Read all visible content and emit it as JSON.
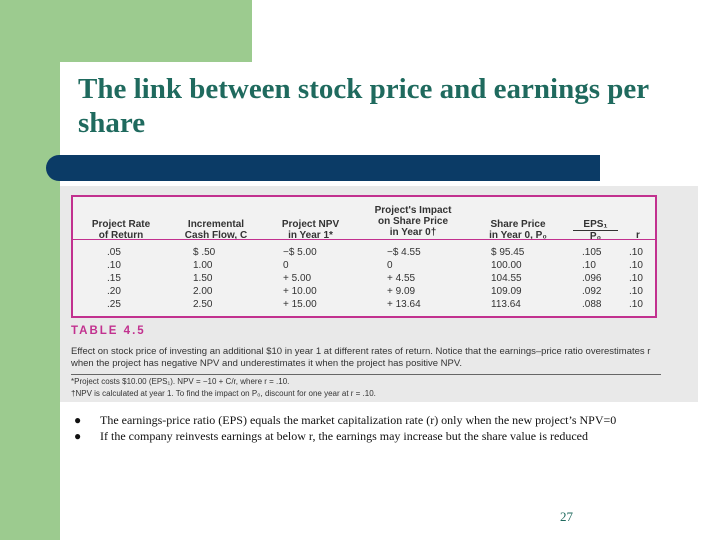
{
  "slide": {
    "title": "The link between stock price and earnings per share",
    "page_number": "27"
  },
  "table": {
    "headers": [
      [
        "Project Rate",
        "of Return"
      ],
      [
        "Incremental",
        "Cash Flow, C"
      ],
      [
        "Project NPV",
        "in Year 1*"
      ],
      [
        "Project's Impact",
        "on Share Price",
        "in Year 0†"
      ],
      [
        "Share Price",
        "in Year 0, P₀"
      ],
      [
        "EPS₁",
        "P₀"
      ],
      [
        "r"
      ]
    ],
    "rows": [
      [
        ".05",
        "$ .50",
        "−$ 5.00",
        "−$ 4.55",
        "$ 95.45",
        ".105",
        ".10"
      ],
      [
        ".10",
        "1.00",
        "0",
        "0",
        "100.00",
        ".10",
        ".10"
      ],
      [
        ".15",
        "1.50",
        "+ 5.00",
        "+ 4.55",
        "104.55",
        ".096",
        ".10"
      ],
      [
        ".20",
        "2.00",
        "+ 10.00",
        "+ 9.09",
        "109.09",
        ".092",
        ".10"
      ],
      [
        ".25",
        "2.50",
        "+ 15.00",
        "+ 13.64",
        "113.64",
        ".088",
        ".10"
      ]
    ],
    "label": "TABLE 4.5",
    "caption": "Effect on stock price of investing an additional $10 in year 1 at different rates of return. Notice that the earnings–price ratio overestimates r when the project has negative NPV and underestimates it when the project has positive NPV.",
    "footnote1": "*Project costs $10.00 (EPS₁). NPV = −10 + C/r, where r = .10.",
    "footnote2": "†NPV is calculated at year 1. To find the impact on P₀, discount for one year at r = .10.",
    "accent_color": "#c2318f"
  },
  "bullets": [
    "The earnings-price ratio (EPS) equals the market capitalization rate (r) only when the new project’s NPV=0",
    "If the company reinvests earnings at below r, the earnings may increase but the share value is reduced"
  ],
  "bullet_glyph": "●",
  "colors": {
    "green_accent": "#9ccb8f",
    "title_text": "#1f6a5e",
    "title_bar": "#0b3b66"
  }
}
